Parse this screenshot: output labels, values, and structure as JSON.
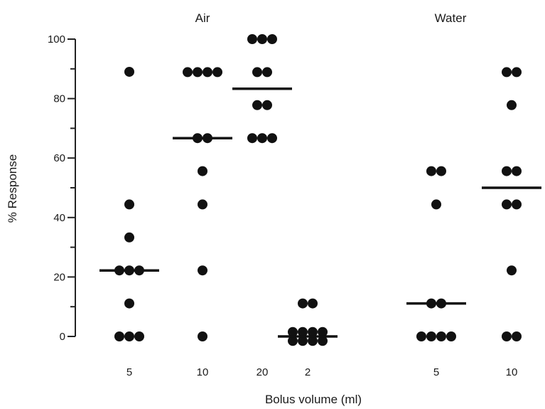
{
  "chart_data": {
    "type": "scatter",
    "title": "",
    "xlabel": "Bolus volume (ml)",
    "ylabel": "% Response",
    "ylim": [
      0,
      100
    ],
    "yticks": [
      0,
      20,
      40,
      60,
      80,
      100
    ],
    "grid": false,
    "legend": "none",
    "group_labels": [
      "Air",
      "Water"
    ],
    "colors": {
      "points": "#111111",
      "median": "#111111",
      "axis": "#222222"
    },
    "categories": [
      {
        "group": "Air",
        "label": "5",
        "values": [
          89,
          44.4,
          33.3,
          22.2,
          22.2,
          22.2,
          11.1,
          0,
          0,
          0
        ],
        "median": 22.2
      },
      {
        "group": "Air",
        "label": "10",
        "values": [
          88.9,
          88.9,
          88.9,
          88.9,
          66.7,
          66.7,
          55.6,
          44.4,
          22.2,
          0
        ],
        "median": 66.7
      },
      {
        "group": "Air",
        "label": "20",
        "values": [
          100,
          100,
          100,
          88.9,
          88.9,
          77.8,
          77.8,
          66.7,
          66.7,
          66.7
        ],
        "median": 83.3
      },
      {
        "group": "Water",
        "label": "2",
        "values": [
          11.1,
          11.1,
          1.5,
          1.5,
          1.5,
          1.5,
          -1.5,
          -1.5,
          -1.5,
          -1.5
        ],
        "median": 0
      },
      {
        "group": "Water",
        "label": "5",
        "values": [
          55.6,
          55.6,
          44.4,
          11.1,
          11.1,
          0,
          0,
          0,
          0
        ],
        "median": 11.1
      },
      {
        "group": "Water",
        "label": "10",
        "values": [
          88.9,
          88.9,
          77.8,
          55.6,
          55.6,
          44.4,
          44.4,
          22.2,
          0,
          0
        ],
        "median": 50
      }
    ]
  }
}
